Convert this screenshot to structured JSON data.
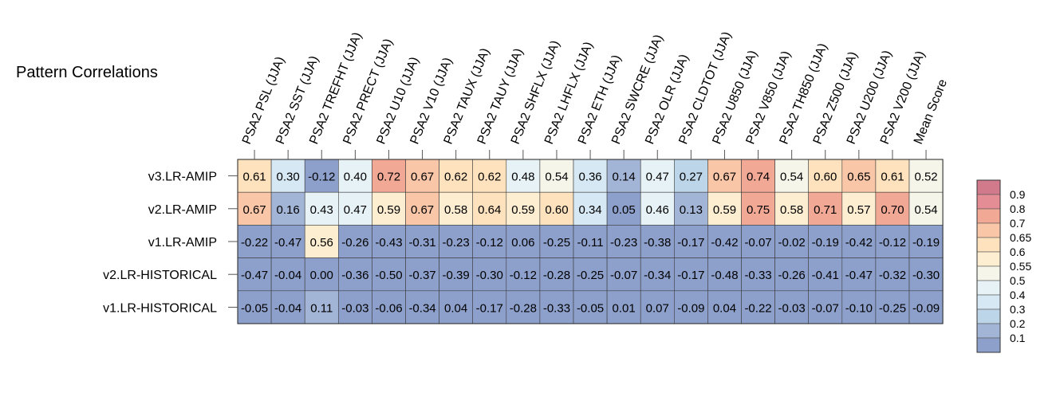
{
  "chart_data": {
    "type": "heatmap",
    "title": "Pattern Correlations",
    "columns": [
      "PSA2 PSL (JJA)",
      "PSA2 SST (JJA)",
      "PSA2 TREFHT (JJA)",
      "PSA2 PRECT (JJA)",
      "PSA2 U10 (JJA)",
      "PSA2 V10 (JJA)",
      "PSA2 TAUX (JJA)",
      "PSA2 TAUY (JJA)",
      "PSA2 SHFLX (JJA)",
      "PSA2 LHFLX (JJA)",
      "PSA2 ETH (JJA)",
      "PSA2 SWCRE (JJA)",
      "PSA2 OLR (JJA)",
      "PSA2 CLDTOT (JJA)",
      "PSA2 U850 (JJA)",
      "PSA2 V850 (JJA)",
      "PSA2 TH850 (JJA)",
      "PSA2 Z500 (JJA)",
      "PSA2 U200 (JJA)",
      "PSA2 V200 (JJA)",
      "Mean Score"
    ],
    "rows": [
      "v3.LR-AMIP",
      "v2.LR-AMIP",
      "v1.LR-AMIP",
      "v2.LR-HISTORICAL",
      "v1.LR-HISTORICAL"
    ],
    "values": [
      [
        0.61,
        0.3,
        -0.12,
        0.4,
        0.72,
        0.67,
        0.62,
        0.62,
        0.48,
        0.54,
        0.36,
        0.14,
        0.47,
        0.27,
        0.67,
        0.74,
        0.54,
        0.6,
        0.65,
        0.61,
        0.52
      ],
      [
        0.67,
        0.16,
        0.43,
        0.47,
        0.59,
        0.67,
        0.58,
        0.64,
        0.59,
        0.6,
        0.34,
        0.05,
        0.46,
        0.13,
        0.59,
        0.75,
        0.58,
        0.71,
        0.57,
        0.7,
        0.54
      ],
      [
        -0.22,
        -0.47,
        0.56,
        -0.26,
        -0.43,
        -0.31,
        -0.23,
        -0.12,
        0.06,
        -0.25,
        -0.11,
        -0.23,
        -0.38,
        -0.17,
        -0.42,
        -0.07,
        -0.02,
        -0.19,
        -0.42,
        -0.12,
        -0.19
      ],
      [
        -0.47,
        -0.04,
        -0.0,
        -0.36,
        -0.5,
        -0.37,
        -0.39,
        -0.3,
        -0.12,
        -0.28,
        -0.25,
        -0.07,
        -0.34,
        -0.17,
        -0.48,
        -0.33,
        -0.26,
        -0.41,
        -0.47,
        -0.32,
        -0.3
      ],
      [
        -0.05,
        -0.04,
        0.11,
        -0.03,
        -0.06,
        -0.34,
        0.04,
        -0.17,
        -0.28,
        -0.33,
        -0.05,
        0.01,
        0.07,
        -0.09,
        0.04,
        -0.22,
        -0.03,
        -0.07,
        -0.1,
        -0.25,
        -0.09
      ]
    ],
    "colorbar": {
      "levels": [
        0.9,
        0.8,
        0.7,
        0.65,
        0.6,
        0.55,
        0.5,
        0.4,
        0.3,
        0.2,
        0.1
      ],
      "colors": [
        "#8da0cb",
        "#a3b5d6",
        "#bcd5e8",
        "#d6e8f3",
        "#e7f2f7",
        "#f5f5ea",
        "#fdeed1",
        "#fde2bd",
        "#f9c6a7",
        "#f1a895",
        "#e48d95",
        "#d07a8c"
      ]
    }
  }
}
